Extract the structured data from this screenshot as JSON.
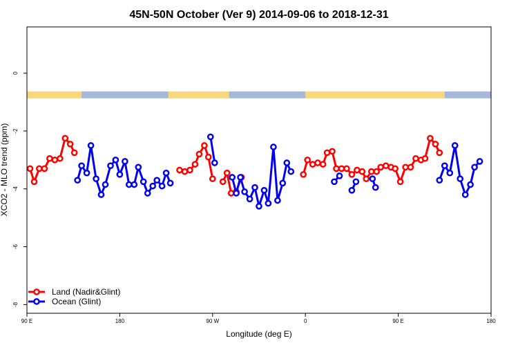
{
  "chart_data": {
    "type": "line",
    "title": "45N-50N October (Ver 9)   2014-09-06 to 2018-12-31",
    "xlabel": "Longitude (deg E)",
    "ylabel": "XCO2 - MLO trend (ppm)",
    "xlim": [
      90,
      540
    ],
    "ylim": [
      -8.3,
      1.6
    ],
    "x_ticks": [
      {
        "value": 90,
        "label": "90 E"
      },
      {
        "value": 180,
        "label": "180"
      },
      {
        "value": 270,
        "label": "90 W"
      },
      {
        "value": 360,
        "label": "0"
      },
      {
        "value": 450,
        "label": "90 E"
      },
      {
        "value": 540,
        "label": "180"
      }
    ],
    "y_ticks": [
      {
        "value": 0,
        "label": "0"
      },
      {
        "value": -2,
        "label": "-2"
      },
      {
        "value": -4,
        "label": "-4"
      },
      {
        "value": -6,
        "label": "-6"
      },
      {
        "value": -8,
        "label": "-8"
      }
    ],
    "land_mask": {
      "y_value": -0.75,
      "land_color": "#f8d67a",
      "ocean_color": "#a5b8dc",
      "land_ranges": [
        [
          90,
          143
        ],
        [
          227,
          286
        ],
        [
          360,
          495
        ]
      ]
    },
    "legend": {
      "position": "bottom-left"
    },
    "series": [
      {
        "name": "Land (Nadir&Glint)",
        "color": "#ff0000",
        "segments": [
          [
            [
              93,
              -3.3
            ],
            [
              97,
              -3.75
            ],
            [
              102,
              -3.3
            ],
            [
              107,
              -3.3
            ],
            [
              112,
              -2.95
            ],
            [
              117,
              -3.0
            ],
            [
              122,
              -2.95
            ],
            [
              127,
              -2.25
            ],
            [
              132,
              -2.45
            ],
            [
              136,
              -2.75
            ]
          ],
          [
            [
              238,
              -3.35
            ],
            [
              243,
              -3.4
            ],
            [
              248,
              -3.35
            ],
            [
              253,
              -3.15
            ],
            [
              257,
              -2.8
            ],
            [
              262,
              -2.5
            ],
            [
              266,
              -2.9
            ],
            [
              270,
              -3.65
            ]
          ],
          [
            [
              280,
              -3.75
            ],
            [
              284,
              -3.45
            ],
            [
              288,
              -4.15
            ],
            [
              293,
              -4.1
            ],
            [
              298,
              -3.6
            ]
          ],
          [
            [
              358,
              -3.5
            ],
            [
              362,
              -3.0
            ],
            [
              367,
              -3.15
            ],
            [
              372,
              -3.1
            ],
            [
              377,
              -3.15
            ],
            [
              381,
              -2.75
            ],
            [
              386,
              -2.7
            ],
            [
              390,
              -3.3
            ],
            [
              395,
              -3.3
            ],
            [
              400,
              -3.3
            ],
            [
              405,
              -3.5
            ],
            [
              410,
              -3.35
            ],
            [
              415,
              -3.4
            ],
            [
              419,
              -3.65
            ],
            [
              424,
              -3.4
            ],
            [
              429,
              -3.4
            ],
            [
              433,
              -3.25
            ],
            [
              438,
              -3.2
            ],
            [
              443,
              -3.25
            ],
            [
              447,
              -3.3
            ],
            [
              452,
              -3.75
            ],
            [
              457,
              -3.25
            ],
            [
              462,
              -3.25
            ],
            [
              467,
              -2.95
            ],
            [
              472,
              -3.0
            ],
            [
              476,
              -2.95
            ],
            [
              481,
              -2.25
            ],
            [
              486,
              -2.45
            ],
            [
              490,
              -2.75
            ]
          ]
        ]
      },
      {
        "name": "Ocean (Glint)",
        "color": "#0000ee",
        "segments": [
          [
            [
              139,
              -3.7
            ],
            [
              143,
              -3.2
            ],
            [
              148,
              -3.45
            ],
            [
              152,
              -2.5
            ],
            [
              157,
              -3.65
            ],
            [
              162,
              -4.2
            ],
            [
              166,
              -3.85
            ],
            [
              171,
              -3.2
            ],
            [
              176,
              -3.0
            ],
            [
              180,
              -3.5
            ],
            [
              185,
              -3.05
            ],
            [
              189,
              -3.85
            ],
            [
              194,
              -3.85
            ],
            [
              198,
              -3.25
            ],
            [
              203,
              -3.75
            ],
            [
              207,
              -4.15
            ],
            [
              212,
              -3.9
            ],
            [
              216,
              -3.7
            ],
            [
              221,
              -3.9
            ],
            [
              225,
              -3.45
            ],
            [
              229,
              -3.8
            ]
          ],
          [
            [
              268,
              -2.2
            ],
            [
              272,
              -3.1
            ]
          ],
          [
            [
              289,
              -3.6
            ],
            [
              293,
              -4.15
            ],
            [
              297,
              -3.6
            ],
            [
              301,
              -4.1
            ],
            [
              306,
              -4.35
            ],
            [
              311,
              -3.95
            ],
            [
              315,
              -4.6
            ],
            [
              320,
              -4.05
            ],
            [
              324,
              -4.5
            ],
            [
              329,
              -2.55
            ],
            [
              333,
              -4.4
            ],
            [
              338,
              -3.8
            ],
            [
              342,
              -3.1
            ],
            [
              346,
              -3.4
            ]
          ],
          [
            [
              388,
              -3.75
            ],
            [
              393,
              -3.55
            ]
          ],
          [
            [
              405,
              -4.05
            ],
            [
              409,
              -3.75
            ]
          ],
          [
            [
              425,
              -3.65
            ],
            [
              428,
              -3.95
            ]
          ],
          [
            [
              490,
              -3.7
            ],
            [
              495,
              -3.2
            ],
            [
              500,
              -3.45
            ],
            [
              505,
              -2.5
            ],
            [
              510,
              -3.65
            ],
            [
              515,
              -4.2
            ],
            [
              520,
              -3.85
            ],
            [
              524,
              -3.25
            ],
            [
              529,
              -3.05
            ]
          ]
        ]
      }
    ]
  }
}
